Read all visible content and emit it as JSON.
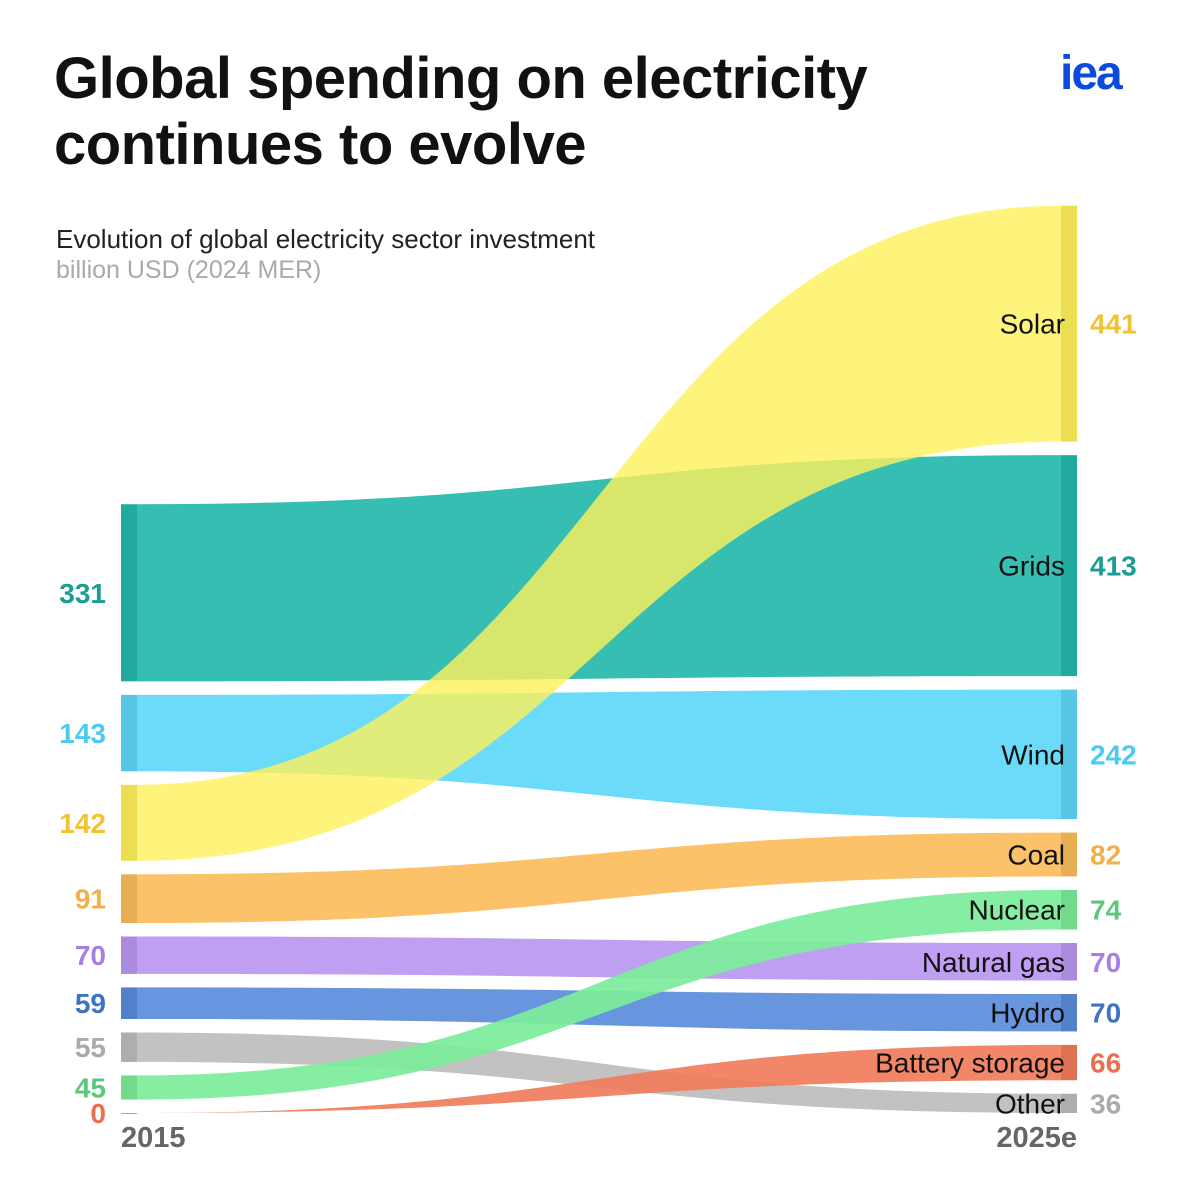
{
  "title_line1": "Global spending on electricity",
  "title_line2": "continues to evolve",
  "subtitle": "Evolution of global electricity sector investment",
  "unit": "billion USD (2024 MER)",
  "logo": "iea",
  "chart_data": {
    "type": "bump-sankey",
    "categories": [
      "2015",
      "2025e"
    ],
    "series": [
      {
        "name": "Solar",
        "values": [
          142,
          441
        ],
        "color": "#fff15a",
        "label_color": "#f2c230"
      },
      {
        "name": "Grids",
        "values": [
          331,
          413
        ],
        "color": "#26b9ad",
        "label_color": "#1a9e94"
      },
      {
        "name": "Wind",
        "values": [
          143,
          242
        ],
        "color": "#5fd8f9",
        "label_color": "#4ccbf0"
      },
      {
        "name": "Coal",
        "values": [
          91,
          82
        ],
        "color": "#fbbd5c",
        "label_color": "#f2b04a"
      },
      {
        "name": "Nuclear",
        "values": [
          45,
          74
        ],
        "color": "#7ced9a",
        "label_color": "#5cc97a"
      },
      {
        "name": "Natural gas",
        "values": [
          70,
          70
        ],
        "color": "#b997f0",
        "label_color": "#a57ee8"
      },
      {
        "name": "Hydro",
        "values": [
          59,
          70
        ],
        "color": "#5a8ddb",
        "label_color": "#3e73c4"
      },
      {
        "name": "Battery storage",
        "values": [
          0,
          66
        ],
        "color": "#f07c5b",
        "label_color": "#e8704e"
      },
      {
        "name": "Other",
        "values": [
          55,
          36
        ],
        "color": "#bdbdbd",
        "label_color": "#aaaaaa"
      }
    ]
  }
}
